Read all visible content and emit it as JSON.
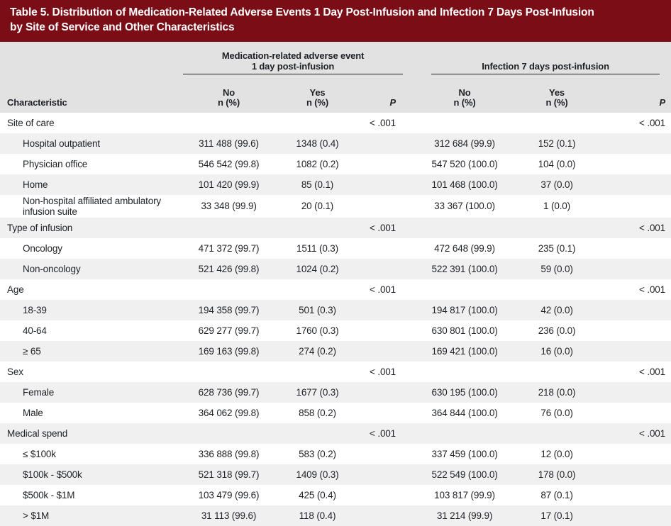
{
  "title": {
    "label": "Table 5.",
    "text": "Distribution of Medication-Related Adverse Events 1 Day Post-Infusion and Infection 7 Days Post-Infusion by Site of Service and Other Characteristics"
  },
  "colors": {
    "title_bar": "#7a0d15",
    "header_bg": "#e2e2e2",
    "stripe_row": "#f0f0f0",
    "text": "#1e2126"
  },
  "table": {
    "char_header": "Characteristic",
    "groups": [
      {
        "lines": [
          "Medication-related adverse event",
          "1 day post-infusion"
        ]
      },
      {
        "lines": [
          "Infection 7 days post-infusion"
        ]
      }
    ],
    "col_headers": [
      {
        "line1": "No",
        "line2": "n (%)"
      },
      {
        "line1": "Yes",
        "line2": "n (%)"
      },
      {
        "line1": "P"
      },
      {
        "line1": "No",
        "line2": "n (%)"
      },
      {
        "line1": "Yes",
        "line2": "n (%)"
      },
      {
        "line1": "P"
      }
    ],
    "rows": [
      {
        "type": "group",
        "label": "Site of care",
        "cells": [
          "",
          "",
          "< .001",
          "",
          "",
          "< .001"
        ]
      },
      {
        "type": "item",
        "label": "Hospital outpatient",
        "cells": [
          "311 488 (99.6)",
          "1348 (0.4)",
          "",
          "312 684 (99.9)",
          "152 (0.1)",
          ""
        ]
      },
      {
        "type": "item",
        "label": "Physician office",
        "cells": [
          "546 542 (99.8)",
          "1082 (0.2)",
          "",
          "547 520 (100.0)",
          "104 (0.0)",
          ""
        ]
      },
      {
        "type": "item",
        "label": "Home",
        "cells": [
          "101 420 (99.9)",
          "85 (0.1)",
          "",
          "101 468 (100.0)",
          "37 (0.0)",
          ""
        ]
      },
      {
        "type": "item",
        "label": "Non-hospital affiliated ambulatory infusion suite",
        "cells": [
          "33 348 (99.9)",
          "20 (0.1)",
          "",
          "33 367 (100.0)",
          "1 (0.0)",
          ""
        ]
      },
      {
        "type": "group",
        "label": "Type of infusion",
        "cells": [
          "",
          "",
          "< .001",
          "",
          "",
          "< .001"
        ]
      },
      {
        "type": "item",
        "label": "Oncology",
        "cells": [
          "471 372 (99.7)",
          "1511 (0.3)",
          "",
          "472 648 (99.9)",
          "235 (0.1)",
          ""
        ]
      },
      {
        "type": "item",
        "label": "Non-oncology",
        "cells": [
          "521 426 (99.8)",
          "1024 (0.2)",
          "",
          "522 391 (100.0)",
          "59 (0.0)",
          ""
        ]
      },
      {
        "type": "group",
        "label": "Age",
        "cells": [
          "",
          "",
          "< .001",
          "",
          "",
          "< .001"
        ]
      },
      {
        "type": "item",
        "label": "18-39",
        "cells": [
          "194 358 (99.7)",
          "501 (0.3)",
          "",
          "194 817 (100.0)",
          "42 (0.0)",
          ""
        ]
      },
      {
        "type": "item",
        "label": "40-64",
        "cells": [
          "629 277 (99.7)",
          "1760 (0.3)",
          "",
          "630 801 (100.0)",
          "236 (0.0)",
          ""
        ]
      },
      {
        "type": "item",
        "label": "≥ 65",
        "cells": [
          "169 163 (99.8)",
          "274 (0.2)",
          "",
          "169 421 (100.0)",
          "16 (0.0)",
          ""
        ]
      },
      {
        "type": "group",
        "label": "Sex",
        "cells": [
          "",
          "",
          "< .001",
          "",
          "",
          "< .001"
        ]
      },
      {
        "type": "item",
        "label": "Female",
        "cells": [
          "628 736 (99.7)",
          "1677 (0.3)",
          "",
          "630 195 (100.0)",
          "218 (0.0)",
          ""
        ]
      },
      {
        "type": "item",
        "label": "Male",
        "cells": [
          "364 062 (99.8)",
          "858 (0.2)",
          "",
          "364 844 (100.0)",
          "76 (0.0)",
          ""
        ]
      },
      {
        "type": "group",
        "label": "Medical spend",
        "cells": [
          "",
          "",
          "< .001",
          "",
          "",
          "< .001"
        ]
      },
      {
        "type": "item",
        "label": "≤ $100k",
        "cells": [
          "336 888 (99.8)",
          "583 (0.2)",
          "",
          "337 459 (100.0)",
          "12 (0.0)",
          ""
        ]
      },
      {
        "type": "item",
        "label": "$100k - $500k",
        "cells": [
          "521 318 (99.7)",
          "1409 (0.3)",
          "",
          "522 549 (100.0)",
          "178 (0.0)",
          ""
        ]
      },
      {
        "type": "item",
        "label": "$500k - $1M",
        "cells": [
          "103 479 (99.6)",
          "425 (0.4)",
          "",
          "103 817 (99.9)",
          "87 (0.1)",
          ""
        ]
      },
      {
        "type": "item",
        "label": "> $1M",
        "cells": [
          "31 113 (99.6)",
          "118 (0.4)",
          "",
          "31 214 (99.9)",
          "17 (0.1)",
          ""
        ]
      }
    ]
  }
}
